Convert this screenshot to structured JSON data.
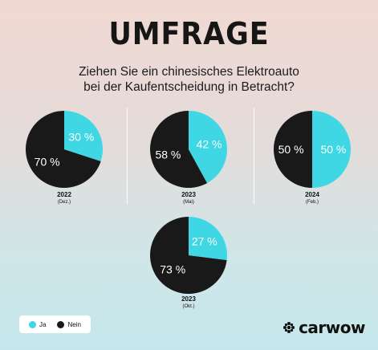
{
  "title": "UMFRAGE",
  "question_line1": "Ziehen Sie ein chinesisches Elektroauto",
  "question_line2": "bei der Kaufentscheidung in Betracht?",
  "colors": {
    "ja": "#3ed7e3",
    "nein": "#191919"
  },
  "legend": {
    "ja_label": "Ja",
    "nein_label": "Nein"
  },
  "brand": {
    "name": "carwow",
    "icon": "carwow-logo-icon"
  },
  "chart_data": {
    "type": "pie",
    "series_labels": [
      "Ja",
      "Nein"
    ],
    "charts": [
      {
        "id": "2022",
        "year": "2022",
        "sub": "(Dez.)",
        "ja": 30,
        "nein": 70,
        "ja_label": "30 %",
        "nein_label": "70 %"
      },
      {
        "id": "2023-mai",
        "year": "2023",
        "sub": "(Mai)",
        "ja": 42,
        "nein": 58,
        "ja_label": "42 %",
        "nein_label": "58 %"
      },
      {
        "id": "2024",
        "year": "2024",
        "sub": "(Feb.)",
        "ja": 50,
        "nein": 50,
        "ja_label": "50 %",
        "nein_label": "50 %"
      },
      {
        "id": "2023-okt",
        "year": "2023",
        "sub": "(Okt.)",
        "ja": 27,
        "nein": 73,
        "ja_label": "27 %",
        "nein_label": "73 %"
      }
    ]
  }
}
